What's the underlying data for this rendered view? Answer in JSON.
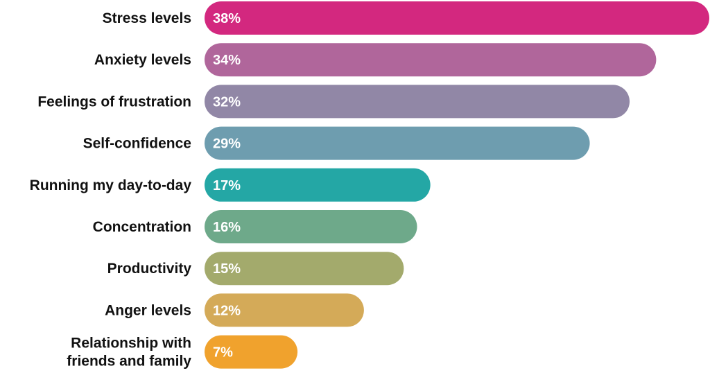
{
  "chart_data": {
    "type": "bar",
    "orientation": "horizontal",
    "title": "",
    "xlabel": "",
    "ylabel": "",
    "categories": [
      "Stress levels",
      "Anxiety levels",
      "Feelings of frustration",
      "Self-confidence",
      "Running my day-to-day",
      "Concentration",
      "Productivity",
      "Anger levels",
      "Relationship with friends and family"
    ],
    "values": [
      38,
      34,
      32,
      29,
      17,
      16,
      15,
      12,
      7
    ],
    "value_labels": [
      "38%",
      "34%",
      "32%",
      "29%",
      "17%",
      "16%",
      "15%",
      "12%",
      "7%"
    ],
    "xlim": [
      0,
      38
    ],
    "grid": false,
    "legend": "none",
    "colors": [
      "#D3287F",
      "#B0669B",
      "#9187A6",
      "#6E9DAF",
      "#24A7A5",
      "#6EA98A",
      "#A3AA6C",
      "#D4AA58",
      "#F0A22D"
    ]
  }
}
